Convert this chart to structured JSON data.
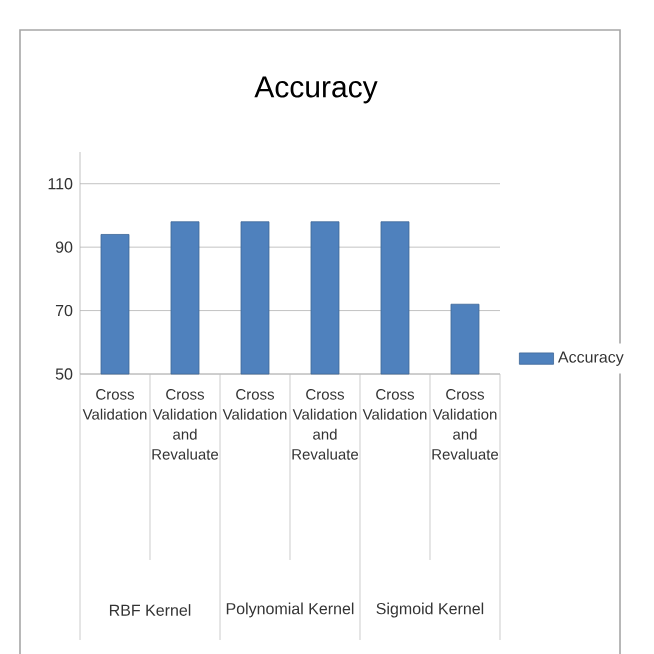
{
  "chart_data": {
    "type": "bar",
    "title": "Accuracy",
    "categories": [
      "Cross Validation",
      "Cross Validation and Revaluate",
      "Cross Validation",
      "Cross Validation and Revaluate",
      "Cross Validation",
      "Cross Validation and Revaluate"
    ],
    "series": [
      {
        "name": "Accuracy",
        "color": "#4f81bd",
        "values": [
          94,
          98,
          98,
          98,
          98,
          72
        ]
      }
    ],
    "ylim": [
      50,
      120
    ],
    "yticks": [
      50,
      70,
      90,
      110
    ],
    "grid": "y",
    "legend": "right",
    "annotations": [
      "RBF Kernel",
      "Polynomial Kernel",
      "Sigmoid Kernel"
    ]
  }
}
